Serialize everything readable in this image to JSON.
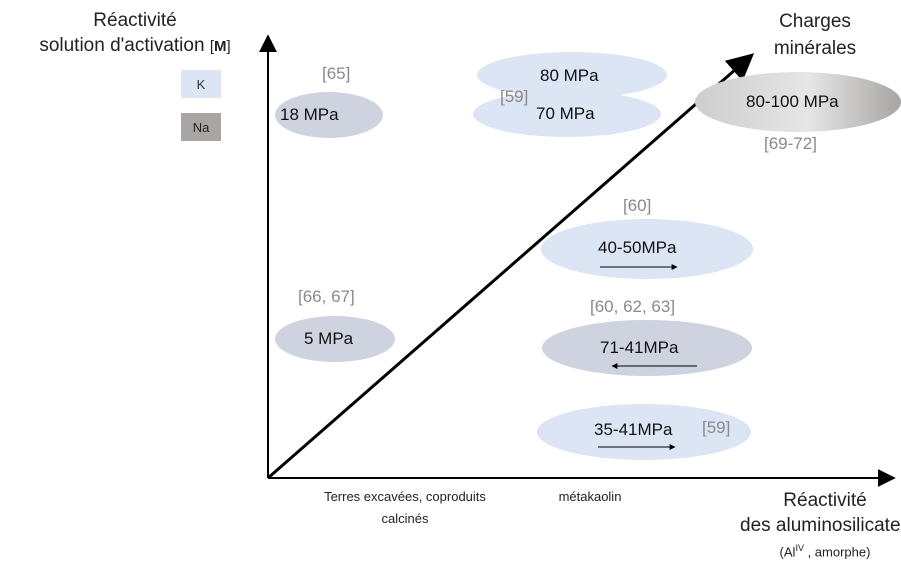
{
  "y_axis": {
    "line1": "Réactivité",
    "line2": "solution d'activation",
    "unit_open": "[",
    "unit_bold": "M",
    "unit_close": "]"
  },
  "legend": {
    "k_label": "K",
    "na_label": "Na",
    "k_color": "#dbe5f4",
    "na_color": "#a8a5a4"
  },
  "top_right_label": {
    "line1": "Charges",
    "line2": "minérales"
  },
  "x_axis": {
    "line1": "Réactivité",
    "line2": "des aluminosilicates",
    "sub_prefix": "(Al",
    "sub_sup": "IV",
    "sub_suffix": " , amorphe)"
  },
  "categories": {
    "left_line1": "Terres excavées, coproduits",
    "left_line2": "calcinés",
    "middle": "métakaolin"
  },
  "bubbles": {
    "b18": {
      "value": "18 MPa",
      "ref": "[65]"
    },
    "b80": {
      "value": "80 MPa"
    },
    "b70": {
      "value": "70 MPa",
      "ref": "[59]"
    },
    "b80100": {
      "value": "80-100 MPa",
      "ref": "[69-72]"
    },
    "b4050": {
      "value": "40-50MPa",
      "ref": "[60]"
    },
    "b5": {
      "value": "5 MPa",
      "ref": "[66, 67]"
    },
    "b7141": {
      "value": "71-41MPa",
      "ref": "[60, 62, 63]"
    },
    "b3541": {
      "value": "35-41MPa",
      "ref": "[59]"
    }
  },
  "colors": {
    "k": "#dbe5f4",
    "na": "#cfd3df",
    "gray_grad_dark": "#a8a5a4",
    "axis": "#000000",
    "ref_text": "#8a8a8a"
  }
}
